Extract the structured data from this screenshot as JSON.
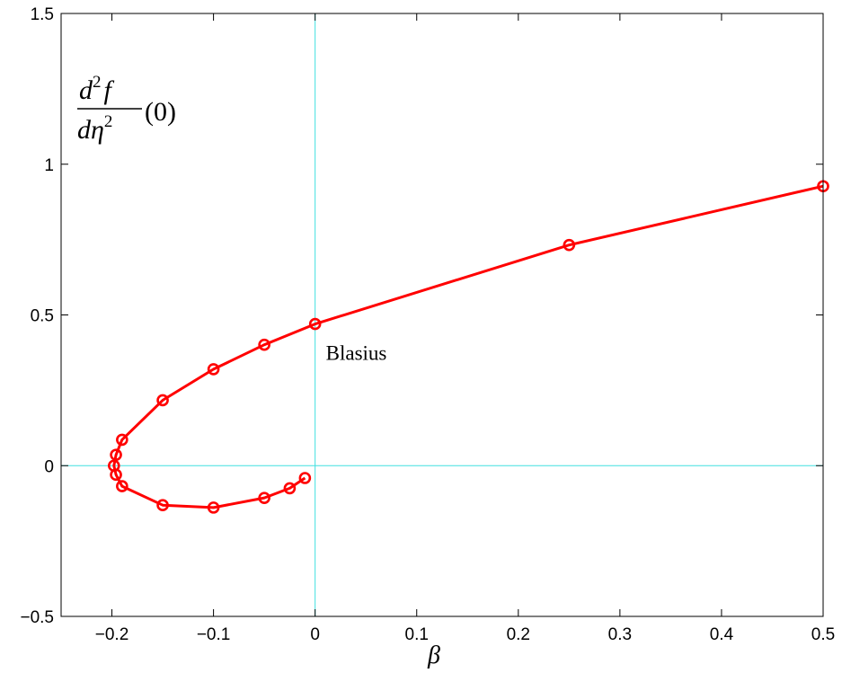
{
  "chart_data": {
    "type": "line",
    "xlabel": "β",
    "ylabel": {
      "numerator_d": "d",
      "numerator_exp": "2",
      "numerator_f": "f",
      "denominator_d": "d",
      "denominator_eta": "η",
      "denominator_exp": "2",
      "argument": "(0)"
    },
    "xlim": [
      -0.25,
      0.5
    ],
    "ylim": [
      -0.5,
      1.5
    ],
    "xticks": [
      -0.2,
      -0.1,
      0,
      0.1,
      0.2,
      0.3,
      0.4,
      0.5
    ],
    "xtick_labels": [
      "−0.2",
      "−0.1",
      "0",
      "0.1",
      "0.2",
      "0.3",
      "0.4",
      "0.5"
    ],
    "yticks": [
      -0.5,
      0,
      0.5,
      1,
      1.5
    ],
    "ytick_labels": [
      "−0.5",
      "0",
      "0.5",
      "1",
      "1.5"
    ],
    "grid": false,
    "reference_lines": {
      "x": 0,
      "y": 0,
      "color": "#40e0e0"
    },
    "series": [
      {
        "color": "#ff0000",
        "marker": "circle",
        "x": [
          0.5,
          0.25,
          0.0,
          -0.05,
          -0.1,
          -0.15,
          -0.19,
          -0.196,
          -0.198,
          -0.196,
          -0.19,
          -0.15,
          -0.1,
          -0.05,
          -0.025,
          -0.01
        ],
        "y": [
          0.927,
          0.732,
          0.47,
          0.401,
          0.32,
          0.217,
          0.086,
          0.036,
          0.0,
          -0.03,
          -0.068,
          -0.131,
          -0.139,
          -0.107,
          -0.075,
          -0.041
        ]
      }
    ],
    "annotations": [
      {
        "text": "Blasius",
        "x": 0.0,
        "y": 0.47
      }
    ]
  }
}
